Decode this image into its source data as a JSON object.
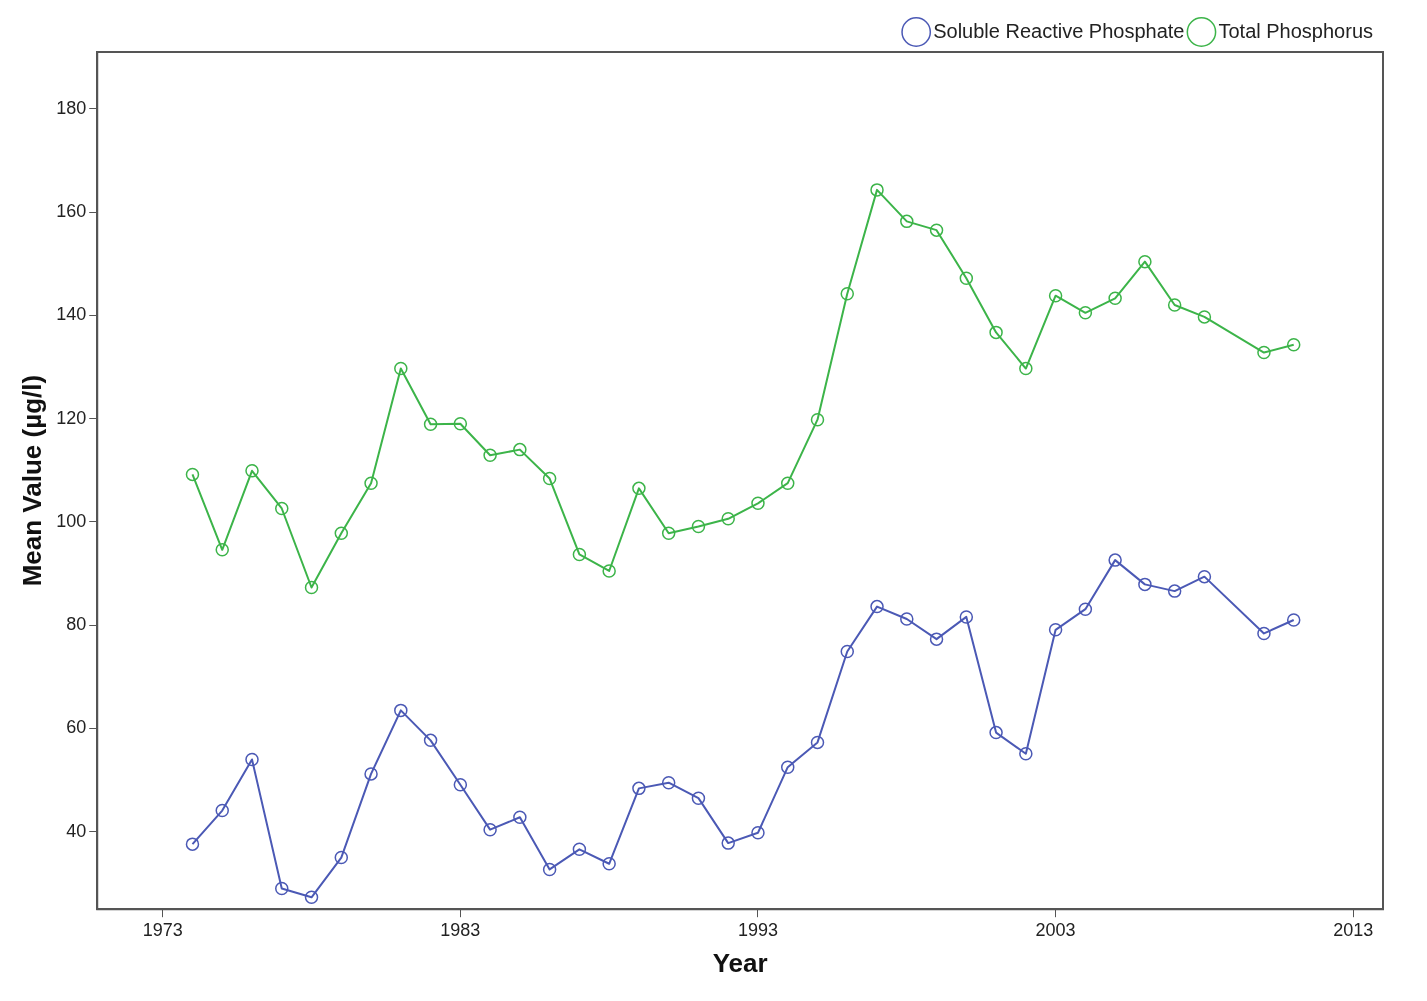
{
  "chart_data": {
    "type": "line",
    "xlabel": "Year",
    "ylabel": "Mean Value (µg/l)",
    "x": [
      1974,
      1975,
      1976,
      1977,
      1978,
      1979,
      1980,
      1981,
      1982,
      1983,
      1984,
      1985,
      1986,
      1987,
      1988,
      1989,
      1990,
      1991,
      1992,
      1993,
      1994,
      1995,
      1996,
      1997,
      1998,
      1999,
      2000,
      2001,
      2002,
      2003,
      2004,
      2005,
      2006,
      2007,
      2008,
      2010,
      2011
    ],
    "series": [
      {
        "name": "Soluble Reactive Phosphate",
        "color": "#4b59b5",
        "values": [
          37.6,
          44.1,
          54.0,
          29.0,
          27.3,
          35.0,
          51.2,
          63.5,
          57.7,
          49.1,
          40.4,
          42.8,
          32.7,
          36.6,
          33.8,
          48.4,
          49.5,
          46.5,
          37.8,
          39.8,
          52.5,
          57.3,
          74.9,
          83.6,
          81.2,
          77.3,
          81.6,
          59.2,
          55.1,
          79.1,
          83.1,
          92.6,
          87.9,
          86.6,
          89.4,
          78.4,
          81.0
        ]
      },
      {
        "name": "Total Phosphorus",
        "color": "#3cb449",
        "values": [
          109.2,
          94.6,
          109.9,
          102.6,
          87.3,
          97.8,
          107.5,
          129.7,
          118.9,
          119.0,
          112.9,
          114.0,
          108.4,
          93.7,
          90.5,
          106.5,
          97.8,
          99.1,
          100.6,
          103.6,
          107.5,
          119.8,
          144.2,
          164.3,
          158.2,
          156.5,
          147.2,
          136.7,
          129.7,
          143.8,
          140.5,
          143.3,
          150.4,
          142.0,
          139.7,
          132.8,
          134.3
        ]
      }
    ],
    "xlim": [
      1970.8,
      2014
    ],
    "xticks": [
      1973,
      1983,
      1993,
      2003,
      2013
    ],
    "ylim": [
      25,
      191
    ],
    "yticks": [
      40,
      60,
      80,
      100,
      120,
      140,
      160,
      180
    ],
    "grid": false,
    "legend": "top right",
    "marker": "circle",
    "line_style": "solid"
  }
}
